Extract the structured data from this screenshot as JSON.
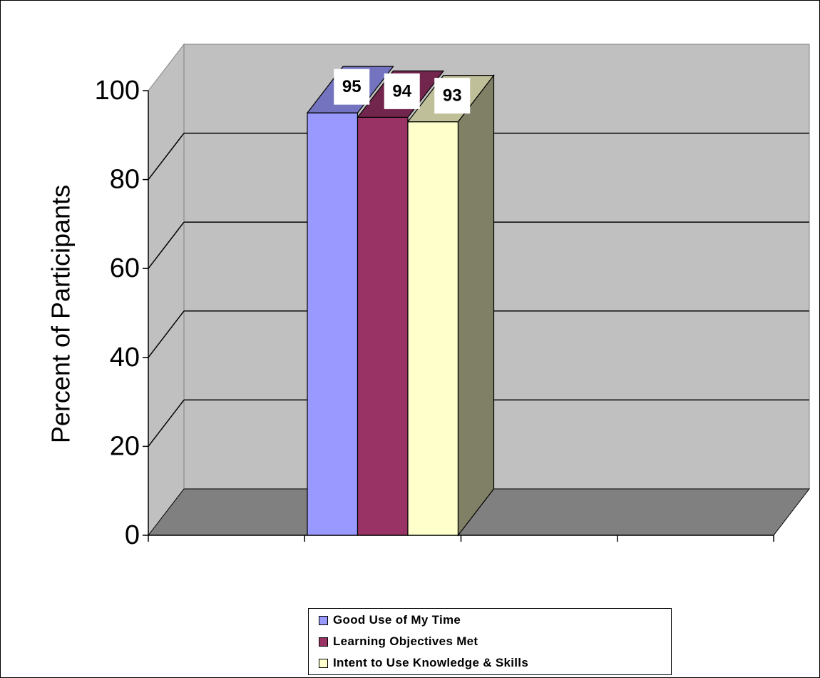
{
  "chart_data": {
    "type": "bar",
    "style": "3d-clustered-column",
    "title": "",
    "xlabel": "",
    "ylabel": "Percent of Participants",
    "ylim": [
      0,
      100
    ],
    "y_ticks": [
      "0",
      "20",
      "40",
      "60",
      "80",
      "100"
    ],
    "grid": true,
    "legend_position": "bottom",
    "categories": [
      ""
    ],
    "series": [
      {
        "name": "Good Use of My Time",
        "values": [
          95
        ],
        "color": "#9999ff"
      },
      {
        "name": "Learning Objectives Met",
        "values": [
          94
        ],
        "color": "#993366"
      },
      {
        "name": "Intent to Use Knowledge & Skills",
        "values": [
          93
        ],
        "color": "#ffffcc"
      }
    ],
    "data_labels": [
      "95",
      "94",
      "93"
    ],
    "colors": {
      "wall": "#c0c0c0",
      "floor": "#808080",
      "gridline": "#000000"
    }
  }
}
